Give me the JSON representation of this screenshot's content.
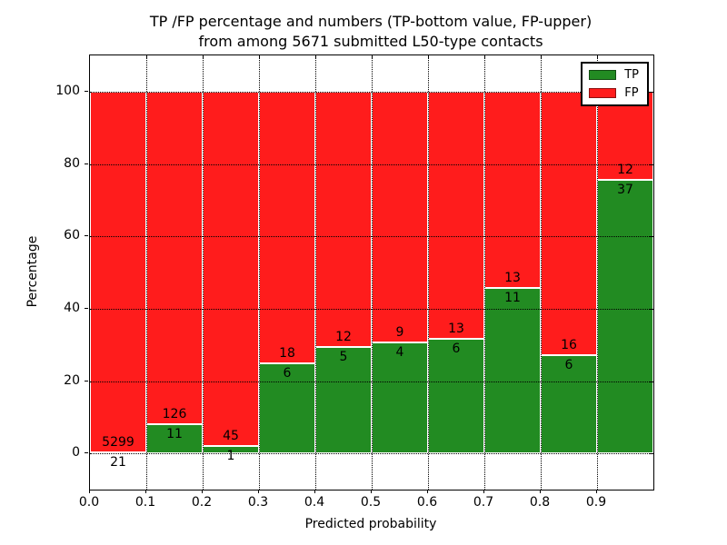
{
  "title": {
    "line1": "TP /FP percentage and numbers (TP-bottom value, FP-upper)",
    "line2": "from among 5671 submitted L50-type contacts"
  },
  "axes": {
    "xlabel": "Predicted probability",
    "ylabel": "Percentage",
    "x_ticks": [
      "0.0",
      "0.1",
      "0.2",
      "0.3",
      "0.4",
      "0.5",
      "0.6",
      "0.7",
      "0.8",
      "0.9"
    ],
    "y_ticks": [
      "0",
      "20",
      "40",
      "60",
      "80",
      "100"
    ]
  },
  "legend": {
    "items": [
      {
        "label": "TP",
        "color": "#228b22"
      },
      {
        "label": "FP",
        "color": "#ff1c1c"
      }
    ]
  },
  "chart_data": {
    "type": "bar",
    "stacked": true,
    "normalized_to_percent": true,
    "title": "TP /FP percentage and numbers (TP-bottom value, FP-upper)\nfrom among 5671 submitted L50-type contacts",
    "xlabel": "Predicted probability",
    "ylabel": "Percentage",
    "xlim": [
      0.0,
      1.0
    ],
    "ylim": [
      -10,
      110
    ],
    "grid": true,
    "legend_position": "upper right",
    "bin_width": 0.1,
    "bins": [
      {
        "x0": 0.0,
        "x1": 0.1,
        "tp": 21,
        "fp": 5299
      },
      {
        "x0": 0.1,
        "x1": 0.2,
        "tp": 11,
        "fp": 126
      },
      {
        "x0": 0.2,
        "x1": 0.3,
        "tp": 1,
        "fp": 45
      },
      {
        "x0": 0.3,
        "x1": 0.4,
        "tp": 6,
        "fp": 18
      },
      {
        "x0": 0.4,
        "x1": 0.5,
        "tp": 5,
        "fp": 12
      },
      {
        "x0": 0.5,
        "x1": 0.6,
        "tp": 4,
        "fp": 9
      },
      {
        "x0": 0.6,
        "x1": 0.7,
        "tp": 6,
        "fp": 13
      },
      {
        "x0": 0.7,
        "x1": 0.8,
        "tp": 11,
        "fp": 13
      },
      {
        "x0": 0.8,
        "x1": 0.9,
        "tp": 6,
        "fp": 16
      },
      {
        "x0": 0.9,
        "x1": 1.0,
        "tp": 37,
        "fp": 12
      }
    ],
    "series": [
      {
        "name": "TP",
        "color": "#228b22",
        "values": [
          21,
          11,
          1,
          6,
          5,
          4,
          6,
          11,
          6,
          37
        ]
      },
      {
        "name": "FP",
        "color": "#ff1c1c",
        "values": [
          5299,
          126,
          45,
          18,
          12,
          9,
          13,
          13,
          16,
          12
        ]
      }
    ],
    "total_label_in_title": "5671"
  }
}
